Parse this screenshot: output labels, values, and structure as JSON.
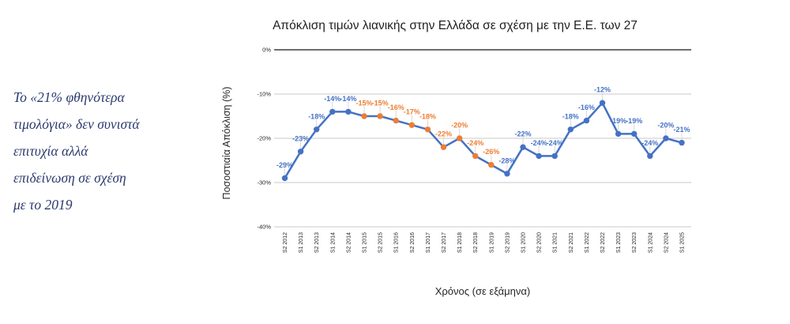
{
  "annotation": {
    "text": "Το «21% φθηνότερα\nτιμολόγια» δεν συνιστά\nεπιτυχία αλλά\nεπιδείνωση σε σχέση\nμε το 2019"
  },
  "chart_data": {
    "type": "line",
    "title": "Απόκλιση τιμών λιανικής στην Ελλάδα σε σχέση με την Ε.Ε. των 27",
    "xlabel": "Χρόνος (σε εξάμηνα)",
    "ylabel": "Ποσοστιαία Απόκλιση (%)",
    "categories": [
      "S2 2012",
      "S1 2013",
      "S2 2013",
      "S1 2014",
      "S2 2014",
      "S1 2015",
      "S2 2015",
      "S1 2016",
      "S2 2016",
      "S1 2017",
      "S2 2017",
      "S1 2018",
      "S2 2018",
      "S1 2019",
      "S2 2019",
      "S1 2020",
      "S2 2020",
      "S1 2021",
      "S2 2021",
      "S1 2022",
      "S2 2022",
      "S1 2023",
      "S2 2023",
      "S1 2024",
      "S2 2024",
      "S1 2025"
    ],
    "series": [
      {
        "values": [
          -29,
          -23,
          -18,
          -14,
          -14,
          -15,
          -15,
          -16,
          -17,
          -18,
          -22,
          -20,
          -24,
          -26,
          -28,
          -22,
          -24,
          -24,
          -18,
          -16,
          -12,
          -19,
          -19,
          -24,
          -20,
          -21
        ],
        "labels": [
          "-29%",
          "-23%",
          "-18%",
          "-14%",
          "-14%",
          "-15%",
          "-15%",
          "-16%",
          "-17%",
          "-18%",
          "-22%",
          "-20%",
          "-24%",
          "-26%",
          "-28%",
          "-22%",
          "-24%",
          "-24%",
          "-18%",
          "-16%",
          "-12%",
          "-19%",
          "-19%",
          "-24%",
          "-20%",
          "-21%"
        ],
        "point_colors": [
          "blue",
          "blue",
          "blue",
          "blue",
          "blue",
          "orange",
          "orange",
          "orange",
          "orange",
          "orange",
          "orange",
          "orange",
          "orange",
          "orange",
          "blue",
          "blue",
          "blue",
          "blue",
          "blue",
          "blue",
          "blue",
          "blue",
          "blue",
          "blue",
          "blue",
          "blue"
        ]
      }
    ],
    "ylim": [
      -40,
      0
    ],
    "yticks": [
      0,
      -10,
      -20,
      -30,
      -40
    ],
    "ytick_labels": [
      "0%",
      "-10%",
      "-20%",
      "-30%",
      "-40%"
    ],
    "grid": true,
    "legend": "none"
  },
  "colors": {
    "blue": "#4472c4",
    "orange": "#ed7d31",
    "gridline": "#c9c9c9",
    "zero_line": "#3f3f3f",
    "leader": "#cbcbcb",
    "tick_text": "#262626",
    "title_text": "#1f1f1f",
    "annotation_text": "#2b3a6e"
  }
}
